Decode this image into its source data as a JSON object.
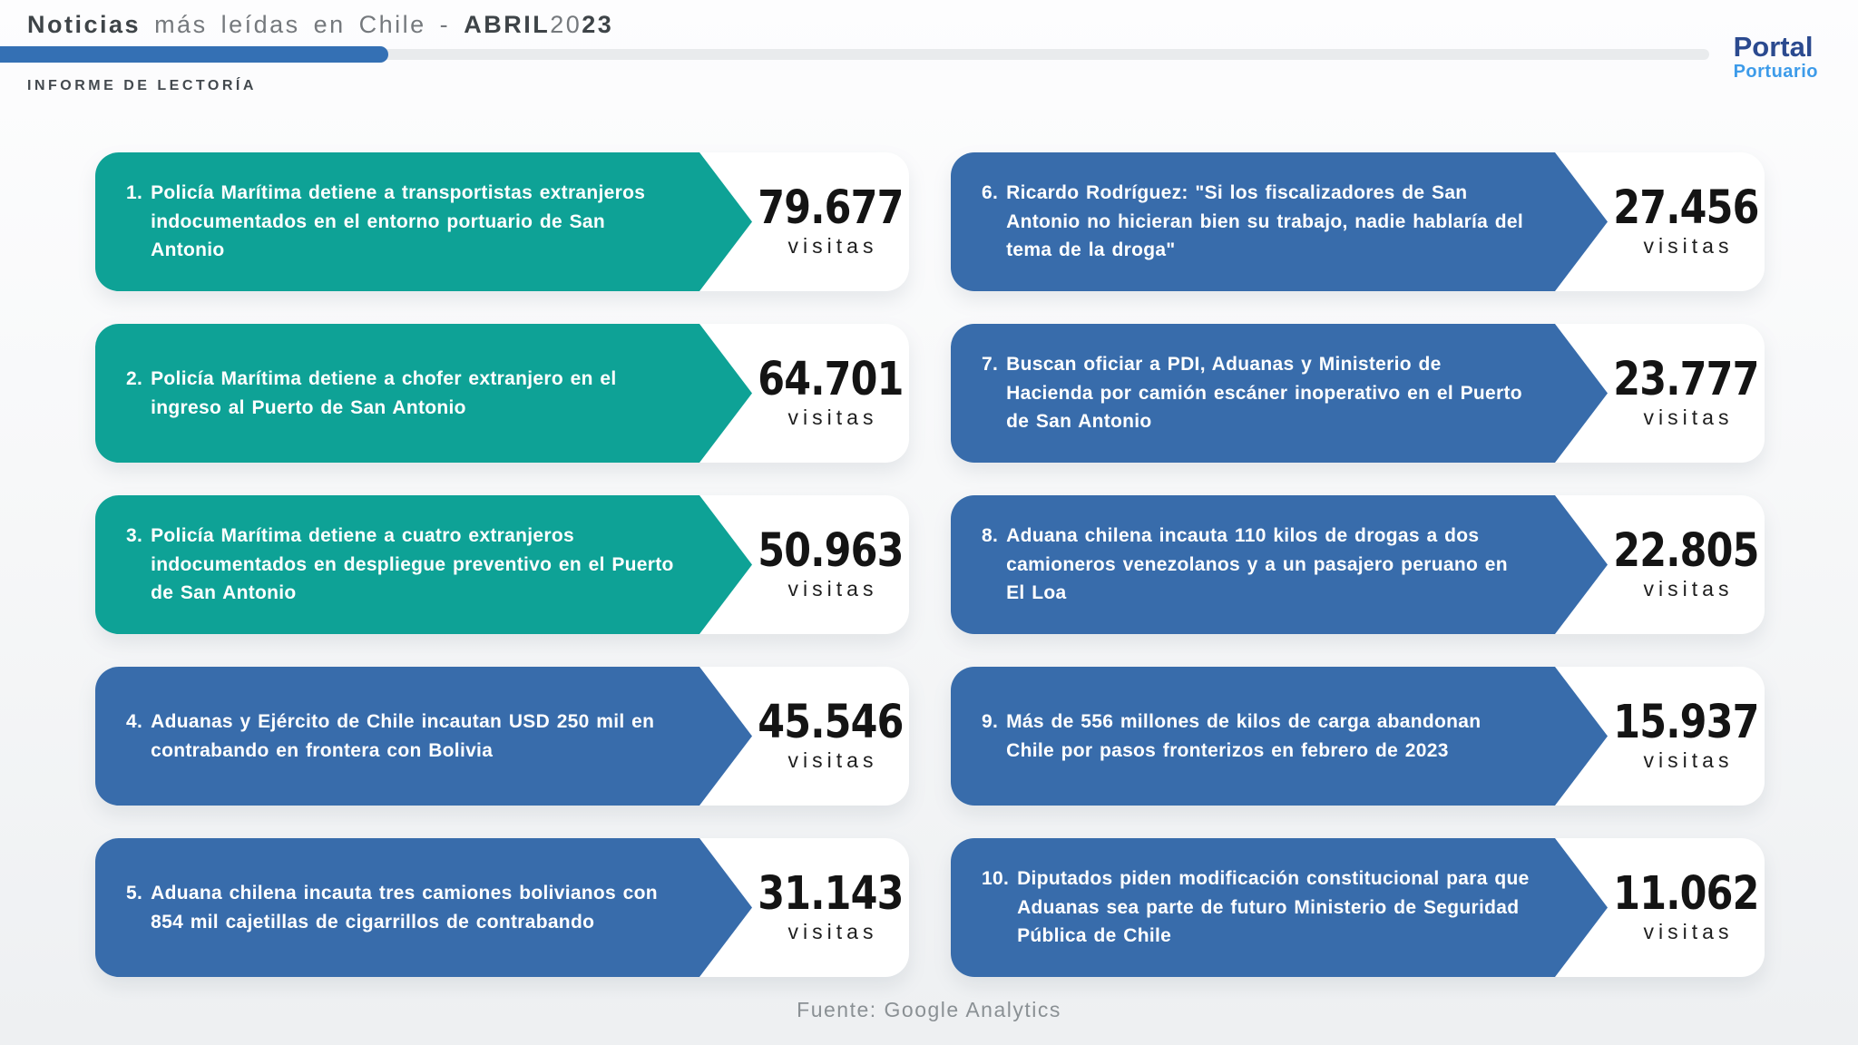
{
  "header": {
    "title_bold": "Noticias",
    "title_mid": "más leídas en Chile -",
    "title_month": "ABRIL",
    "title_year_light": "20",
    "title_year_bold": "23",
    "subtitle": "INFORME DE LECTORÍA",
    "logo_line1": "Portal",
    "logo_line2": "Portuario"
  },
  "colors": {
    "teal_arrow": "#0EA296",
    "blue_arrow": "#386CAB",
    "progress_fill": "#3470B4",
    "progress_track": "#E9EBED",
    "logo_dark_blue": "#2B4A8F",
    "logo_light_blue": "#3D9BE9",
    "visits_number": "#141414",
    "footer_gray": "#8A9094"
  },
  "items": [
    {
      "rank": "1.",
      "title": "Policía Marítima detiene a transportistas extranjeros indocumentados en el entorno portuario de San Antonio",
      "visits": "79.677",
      "visits_label": "visitas",
      "color": "teal"
    },
    {
      "rank": "2.",
      "title": "Policía Marítima detiene a chofer extranjero en el ingreso al Puerto de San Antonio",
      "visits": "64.701",
      "visits_label": "visitas",
      "color": "teal"
    },
    {
      "rank": "3.",
      "title": "Policía Marítima detiene a cuatro extranjeros indocumentados en despliegue preventivo en el Puerto de San Antonio",
      "visits": "50.963",
      "visits_label": "visitas",
      "color": "teal"
    },
    {
      "rank": "4.",
      "title": "Aduanas y Ejército de Chile incautan USD 250 mil en contrabando en frontera con Bolivia",
      "visits": "45.546",
      "visits_label": "visitas",
      "color": "blue"
    },
    {
      "rank": "5.",
      "title": "Aduana chilena incauta tres camiones bolivianos con 854 mil cajetillas de cigarrillos de contrabando",
      "visits": "31.143",
      "visits_label": "visitas",
      "color": "blue"
    },
    {
      "rank": "6.",
      "title": "Ricardo Rodríguez: \"Si los fiscalizadores de San Antonio no hicieran bien su trabajo, nadie hablaría del tema de la droga\"",
      "visits": "27.456",
      "visits_label": "visitas",
      "color": "blue"
    },
    {
      "rank": "7.",
      "title": "Buscan oficiar a PDI, Aduanas y Ministerio de Hacienda por camión escáner inoperativo en el Puerto de San Antonio",
      "visits": "23.777",
      "visits_label": "visitas",
      "color": "blue"
    },
    {
      "rank": "8.",
      "title": "Aduana chilena incauta 110 kilos de drogas a dos camioneros venezolanos y a un pasajero peruano en El Loa",
      "visits": "22.805",
      "visits_label": "visitas",
      "color": "blue"
    },
    {
      "rank": "9.",
      "title": "Más de 556 millones de kilos de carga abandonan Chile por pasos fronterizos en febrero de 2023",
      "visits": "15.937",
      "visits_label": "visitas",
      "color": "blue"
    },
    {
      "rank": "10.",
      "title": "Diputados piden modificación constitucional para que Aduanas sea parte de futuro Ministerio de Seguridad Pública de Chile",
      "visits": "11.062",
      "visits_label": "visitas",
      "color": "blue"
    }
  ],
  "footer": {
    "source": "Fuente: Google Analytics"
  },
  "chart_data": {
    "type": "bar",
    "title": "Noticias más leídas en Chile - ABRIL 2023",
    "subtitle": "INFORME DE LECTORÍA",
    "categories": [
      "Policía Marítima detiene a transportistas extranjeros indocumentados en el entorno portuario de San Antonio",
      "Policía Marítima detiene a chofer extranjero en el ingreso al Puerto de San Antonio",
      "Policía Marítima detiene a cuatro extranjeros indocumentados en despliegue preventivo en el Puerto de San Antonio",
      "Aduanas y Ejército de Chile incautan USD 250 mil en contrabando en frontera con Bolivia",
      "Aduana chilena incauta tres camiones bolivianos con 854 mil cajetillas de cigarrillos de contrabando",
      "Ricardo Rodríguez: \"Si los fiscalizadores de San Antonio no hicieran bien su trabajo, nadie hablaría del tema de la droga\"",
      "Buscan oficiar a PDI, Aduanas y Ministerio de Hacienda por camión escáner inoperativo en el Puerto de San Antonio",
      "Aduana chilena incauta 110 kilos de drogas a dos camioneros venezolanos y a un pasajero peruano en El Loa",
      "Más de 556 millones de kilos de carga abandonan Chile por pasos fronterizos en febrero de 2023",
      "Diputados piden modificación constitucional para que Aduanas sea parte de futuro Ministerio de Seguridad Pública de Chile"
    ],
    "values": [
      79677,
      64701,
      50963,
      45546,
      31143,
      27456,
      23777,
      22805,
      15937,
      11062
    ],
    "ylabel": "visitas",
    "source": "Fuente: Google Analytics",
    "layout": "two-column ranked list, ranks 1-5 left column, 6-10 right column; ranks 1-3 teal, 4-10 blue"
  }
}
